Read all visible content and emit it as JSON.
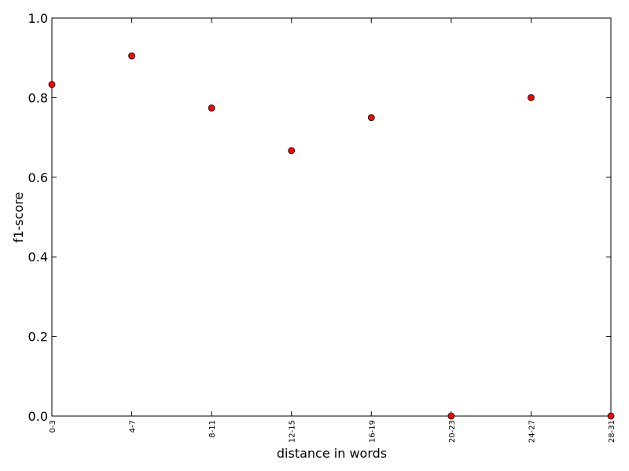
{
  "chart_data": {
    "type": "scatter",
    "title": "",
    "xlabel": "distance in words",
    "ylabel": "f1-score",
    "categories": [
      "0-3",
      "4-7",
      "8-11",
      "12-15",
      "16-19",
      "20-23",
      "24-27",
      "28-31"
    ],
    "values": [
      0.833,
      0.905,
      0.774,
      0.667,
      0.75,
      0.0,
      0.8,
      0.0
    ],
    "ylim": [
      0.0,
      1.0
    ],
    "yticks": [
      "0.0",
      "0.2",
      "0.4",
      "0.6",
      "0.8",
      "1.0"
    ],
    "grid": false,
    "marker_color": "#ff0000",
    "marker_edge_color": "#000000"
  }
}
